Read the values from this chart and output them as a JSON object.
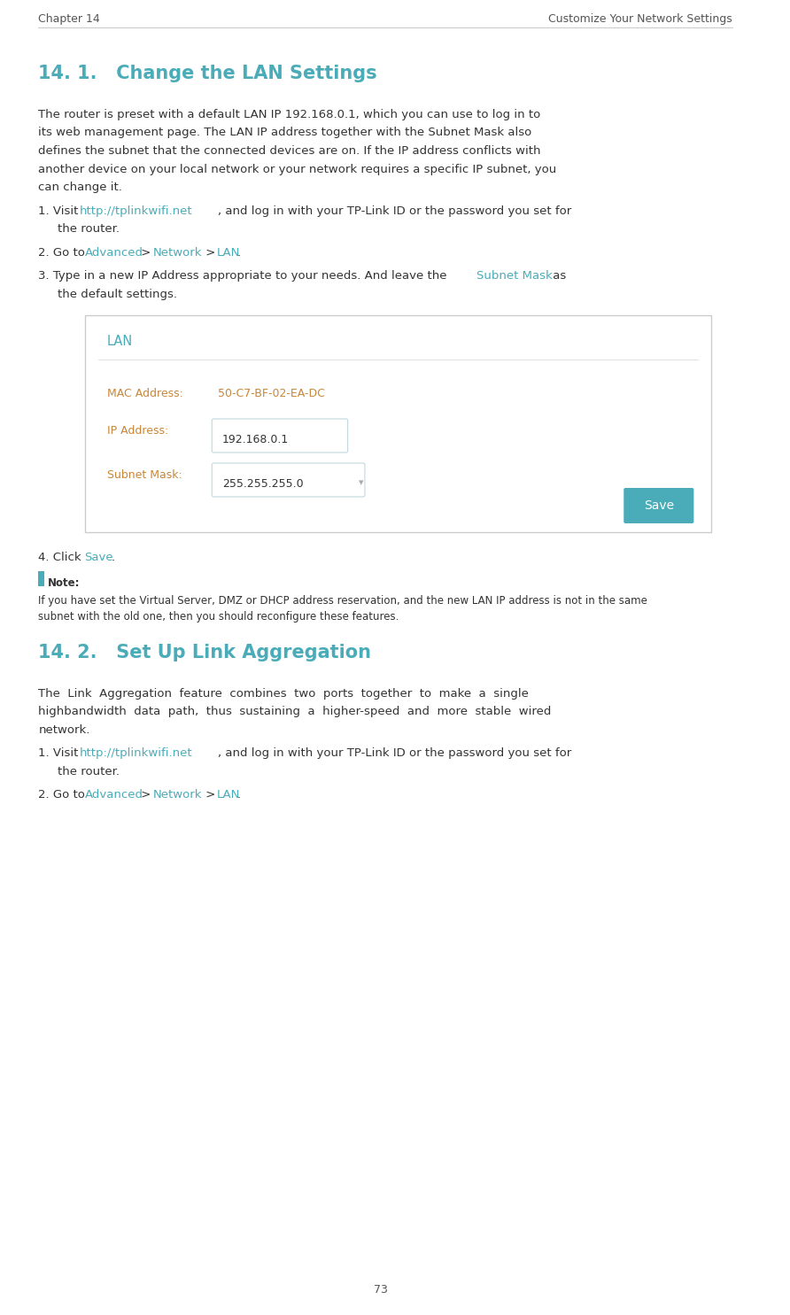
{
  "page_width": 8.92,
  "page_height": 14.85,
  "bg_color": "#ffffff",
  "header_left": "Chapter 14",
  "header_right": "Customize Your Network Settings",
  "header_color": "#555555",
  "header_line_color": "#cccccc",
  "footer_text": "73",
  "footer_color": "#555555",
  "teal_color": "#4AACB8",
  "link_color": "#4AACB8",
  "orange_label_color": "#C8873A",
  "text_color": "#333333",
  "light_gray": "#aaaaaa",
  "section1_title": "14. 1.   Change the LAN Settings",
  "section2_title": "14. 2.   Set Up Link Aggregation",
  "box_border_color": "#cccccc",
  "box_bg": "#ffffff",
  "box_title": "LAN",
  "box_mac_label": "MAC Address:",
  "box_mac_value": "50-C7-BF-02-EA-DC",
  "box_ip_label": "IP Address:",
  "box_ip_value": "192.168.0.1",
  "box_subnet_label": "Subnet Mask:",
  "box_subnet_value": "255.255.255.0",
  "save_btn_color": "#4AACB8",
  "save_btn_text": "Save",
  "input_border": "#c0d8e0",
  "input_bg": "#ffffff",
  "body1_lines": [
    "The router is preset with a default LAN IP 192.168.0.1, which you can use to log in to",
    "its web management page. The LAN IP address together with the Subnet Mask also",
    "defines the subnet that the connected devices are on. If the IP address conflicts with",
    "another device on your local network or your network requires a specific IP subnet, you",
    "can change it."
  ],
  "body2_lines": [
    "The  Link  Aggregation  feature  combines  two  ports  together  to  make  a  single",
    "highbandwidth  data  path,  thus  sustaining  a  higher-speed  and  more  stable  wired",
    "network."
  ],
  "note_lines": [
    "If you have set the Virtual Server, DMZ or DHCP address reservation, and the new LAN IP address is not in the same",
    "subnet with the old one, then you should reconfigure these features."
  ]
}
